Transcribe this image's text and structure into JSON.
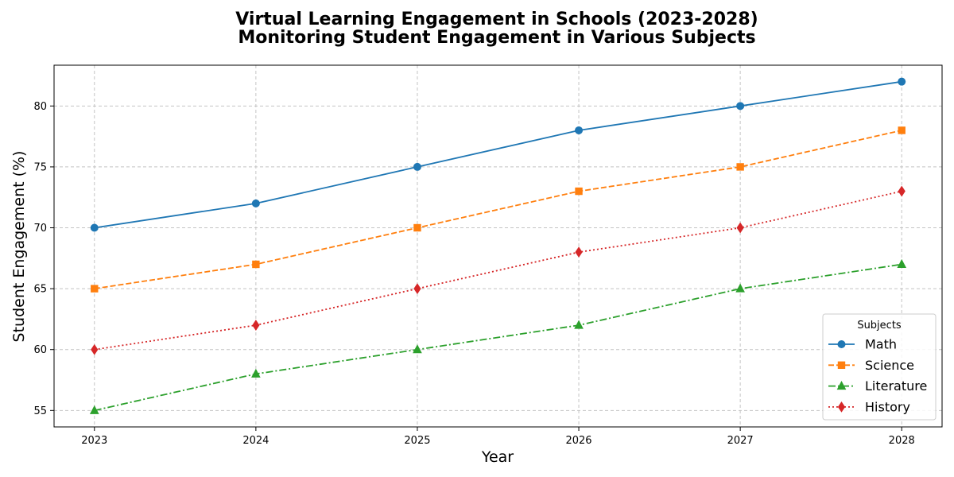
{
  "chart_data": {
    "type": "line",
    "title": "Virtual Learning Engagement in Schools (2023-2028)",
    "subtitle": "Monitoring Student Engagement in Various Subjects",
    "xlabel": "Year",
    "ylabel": "Student Engagement (%)",
    "x": [
      2023,
      2024,
      2025,
      2026,
      2027,
      2028
    ],
    "xlim": [
      2022.75,
      2028.25
    ],
    "ylim": [
      53.65,
      83.35
    ],
    "yticks": [
      55,
      60,
      65,
      70,
      75,
      80
    ],
    "grid": true,
    "legend_title": "Subjects",
    "legend_position": "lower-right",
    "series": [
      {
        "name": "Math",
        "values": [
          70,
          72,
          75,
          78,
          80,
          82
        ],
        "color": "#1f77b4",
        "linestyle": "solid",
        "marker": "circle"
      },
      {
        "name": "Science",
        "values": [
          65,
          67,
          70,
          73,
          75,
          78
        ],
        "color": "#ff7f0e",
        "linestyle": "dashed",
        "marker": "square"
      },
      {
        "name": "Literature",
        "values": [
          55,
          58,
          60,
          62,
          65,
          67
        ],
        "color": "#2ca02c",
        "linestyle": "dashdot",
        "marker": "triangle"
      },
      {
        "name": "History",
        "values": [
          60,
          62,
          65,
          68,
          70,
          73
        ],
        "color": "#d62728",
        "linestyle": "dotted",
        "marker": "diamond"
      }
    ]
  }
}
